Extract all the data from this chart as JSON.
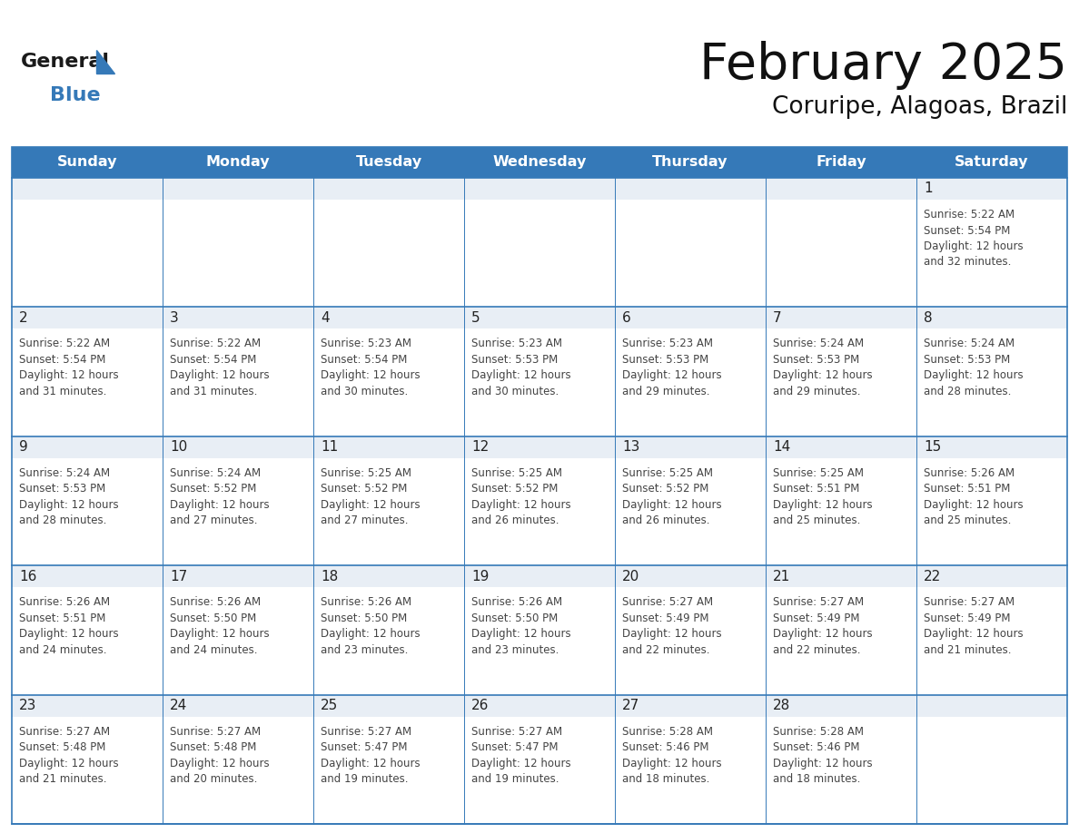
{
  "title": "February 2025",
  "subtitle": "Coruripe, Alagoas, Brazil",
  "header_bg": "#3579b8",
  "header_text_color": "#ffffff",
  "day_names": [
    "Sunday",
    "Monday",
    "Tuesday",
    "Wednesday",
    "Thursday",
    "Friday",
    "Saturday"
  ],
  "cell_bg_top": "#e8eef5",
  "cell_bg_body": "#ffffff",
  "border_color": "#3579b8",
  "text_color": "#444444",
  "day_number_color": "#222222",
  "logo_general_color": "#1a1a1a",
  "logo_blue_color": "#3579b8",
  "calendar": [
    [
      null,
      null,
      null,
      null,
      null,
      null,
      1
    ],
    [
      2,
      3,
      4,
      5,
      6,
      7,
      8
    ],
    [
      9,
      10,
      11,
      12,
      13,
      14,
      15
    ],
    [
      16,
      17,
      18,
      19,
      20,
      21,
      22
    ],
    [
      23,
      24,
      25,
      26,
      27,
      28,
      null
    ]
  ],
  "cell_data": {
    "1": {
      "sunrise": "5:22 AM",
      "sunset": "5:54 PM",
      "daylight_h": "12 hours",
      "daylight_m": "and 32 minutes."
    },
    "2": {
      "sunrise": "5:22 AM",
      "sunset": "5:54 PM",
      "daylight_h": "12 hours",
      "daylight_m": "and 31 minutes."
    },
    "3": {
      "sunrise": "5:22 AM",
      "sunset": "5:54 PM",
      "daylight_h": "12 hours",
      "daylight_m": "and 31 minutes."
    },
    "4": {
      "sunrise": "5:23 AM",
      "sunset": "5:54 PM",
      "daylight_h": "12 hours",
      "daylight_m": "and 30 minutes."
    },
    "5": {
      "sunrise": "5:23 AM",
      "sunset": "5:53 PM",
      "daylight_h": "12 hours",
      "daylight_m": "and 30 minutes."
    },
    "6": {
      "sunrise": "5:23 AM",
      "sunset": "5:53 PM",
      "daylight_h": "12 hours",
      "daylight_m": "and 29 minutes."
    },
    "7": {
      "sunrise": "5:24 AM",
      "sunset": "5:53 PM",
      "daylight_h": "12 hours",
      "daylight_m": "and 29 minutes."
    },
    "8": {
      "sunrise": "5:24 AM",
      "sunset": "5:53 PM",
      "daylight_h": "12 hours",
      "daylight_m": "and 28 minutes."
    },
    "9": {
      "sunrise": "5:24 AM",
      "sunset": "5:53 PM",
      "daylight_h": "12 hours",
      "daylight_m": "and 28 minutes."
    },
    "10": {
      "sunrise": "5:24 AM",
      "sunset": "5:52 PM",
      "daylight_h": "12 hours",
      "daylight_m": "and 27 minutes."
    },
    "11": {
      "sunrise": "5:25 AM",
      "sunset": "5:52 PM",
      "daylight_h": "12 hours",
      "daylight_m": "and 27 minutes."
    },
    "12": {
      "sunrise": "5:25 AM",
      "sunset": "5:52 PM",
      "daylight_h": "12 hours",
      "daylight_m": "and 26 minutes."
    },
    "13": {
      "sunrise": "5:25 AM",
      "sunset": "5:52 PM",
      "daylight_h": "12 hours",
      "daylight_m": "and 26 minutes."
    },
    "14": {
      "sunrise": "5:25 AM",
      "sunset": "5:51 PM",
      "daylight_h": "12 hours",
      "daylight_m": "and 25 minutes."
    },
    "15": {
      "sunrise": "5:26 AM",
      "sunset": "5:51 PM",
      "daylight_h": "12 hours",
      "daylight_m": "and 25 minutes."
    },
    "16": {
      "sunrise": "5:26 AM",
      "sunset": "5:51 PM",
      "daylight_h": "12 hours",
      "daylight_m": "and 24 minutes."
    },
    "17": {
      "sunrise": "5:26 AM",
      "sunset": "5:50 PM",
      "daylight_h": "12 hours",
      "daylight_m": "and 24 minutes."
    },
    "18": {
      "sunrise": "5:26 AM",
      "sunset": "5:50 PM",
      "daylight_h": "12 hours",
      "daylight_m": "and 23 minutes."
    },
    "19": {
      "sunrise": "5:26 AM",
      "sunset": "5:50 PM",
      "daylight_h": "12 hours",
      "daylight_m": "and 23 minutes."
    },
    "20": {
      "sunrise": "5:27 AM",
      "sunset": "5:49 PM",
      "daylight_h": "12 hours",
      "daylight_m": "and 22 minutes."
    },
    "21": {
      "sunrise": "5:27 AM",
      "sunset": "5:49 PM",
      "daylight_h": "12 hours",
      "daylight_m": "and 22 minutes."
    },
    "22": {
      "sunrise": "5:27 AM",
      "sunset": "5:49 PM",
      "daylight_h": "12 hours",
      "daylight_m": "and 21 minutes."
    },
    "23": {
      "sunrise": "5:27 AM",
      "sunset": "5:48 PM",
      "daylight_h": "12 hours",
      "daylight_m": "and 21 minutes."
    },
    "24": {
      "sunrise": "5:27 AM",
      "sunset": "5:48 PM",
      "daylight_h": "12 hours",
      "daylight_m": "and 20 minutes."
    },
    "25": {
      "sunrise": "5:27 AM",
      "sunset": "5:47 PM",
      "daylight_h": "12 hours",
      "daylight_m": "and 19 minutes."
    },
    "26": {
      "sunrise": "5:27 AM",
      "sunset": "5:47 PM",
      "daylight_h": "12 hours",
      "daylight_m": "and 19 minutes."
    },
    "27": {
      "sunrise": "5:28 AM",
      "sunset": "5:46 PM",
      "daylight_h": "12 hours",
      "daylight_m": "and 18 minutes."
    },
    "28": {
      "sunrise": "5:28 AM",
      "sunset": "5:46 PM",
      "daylight_h": "12 hours",
      "daylight_m": "and 18 minutes."
    }
  }
}
